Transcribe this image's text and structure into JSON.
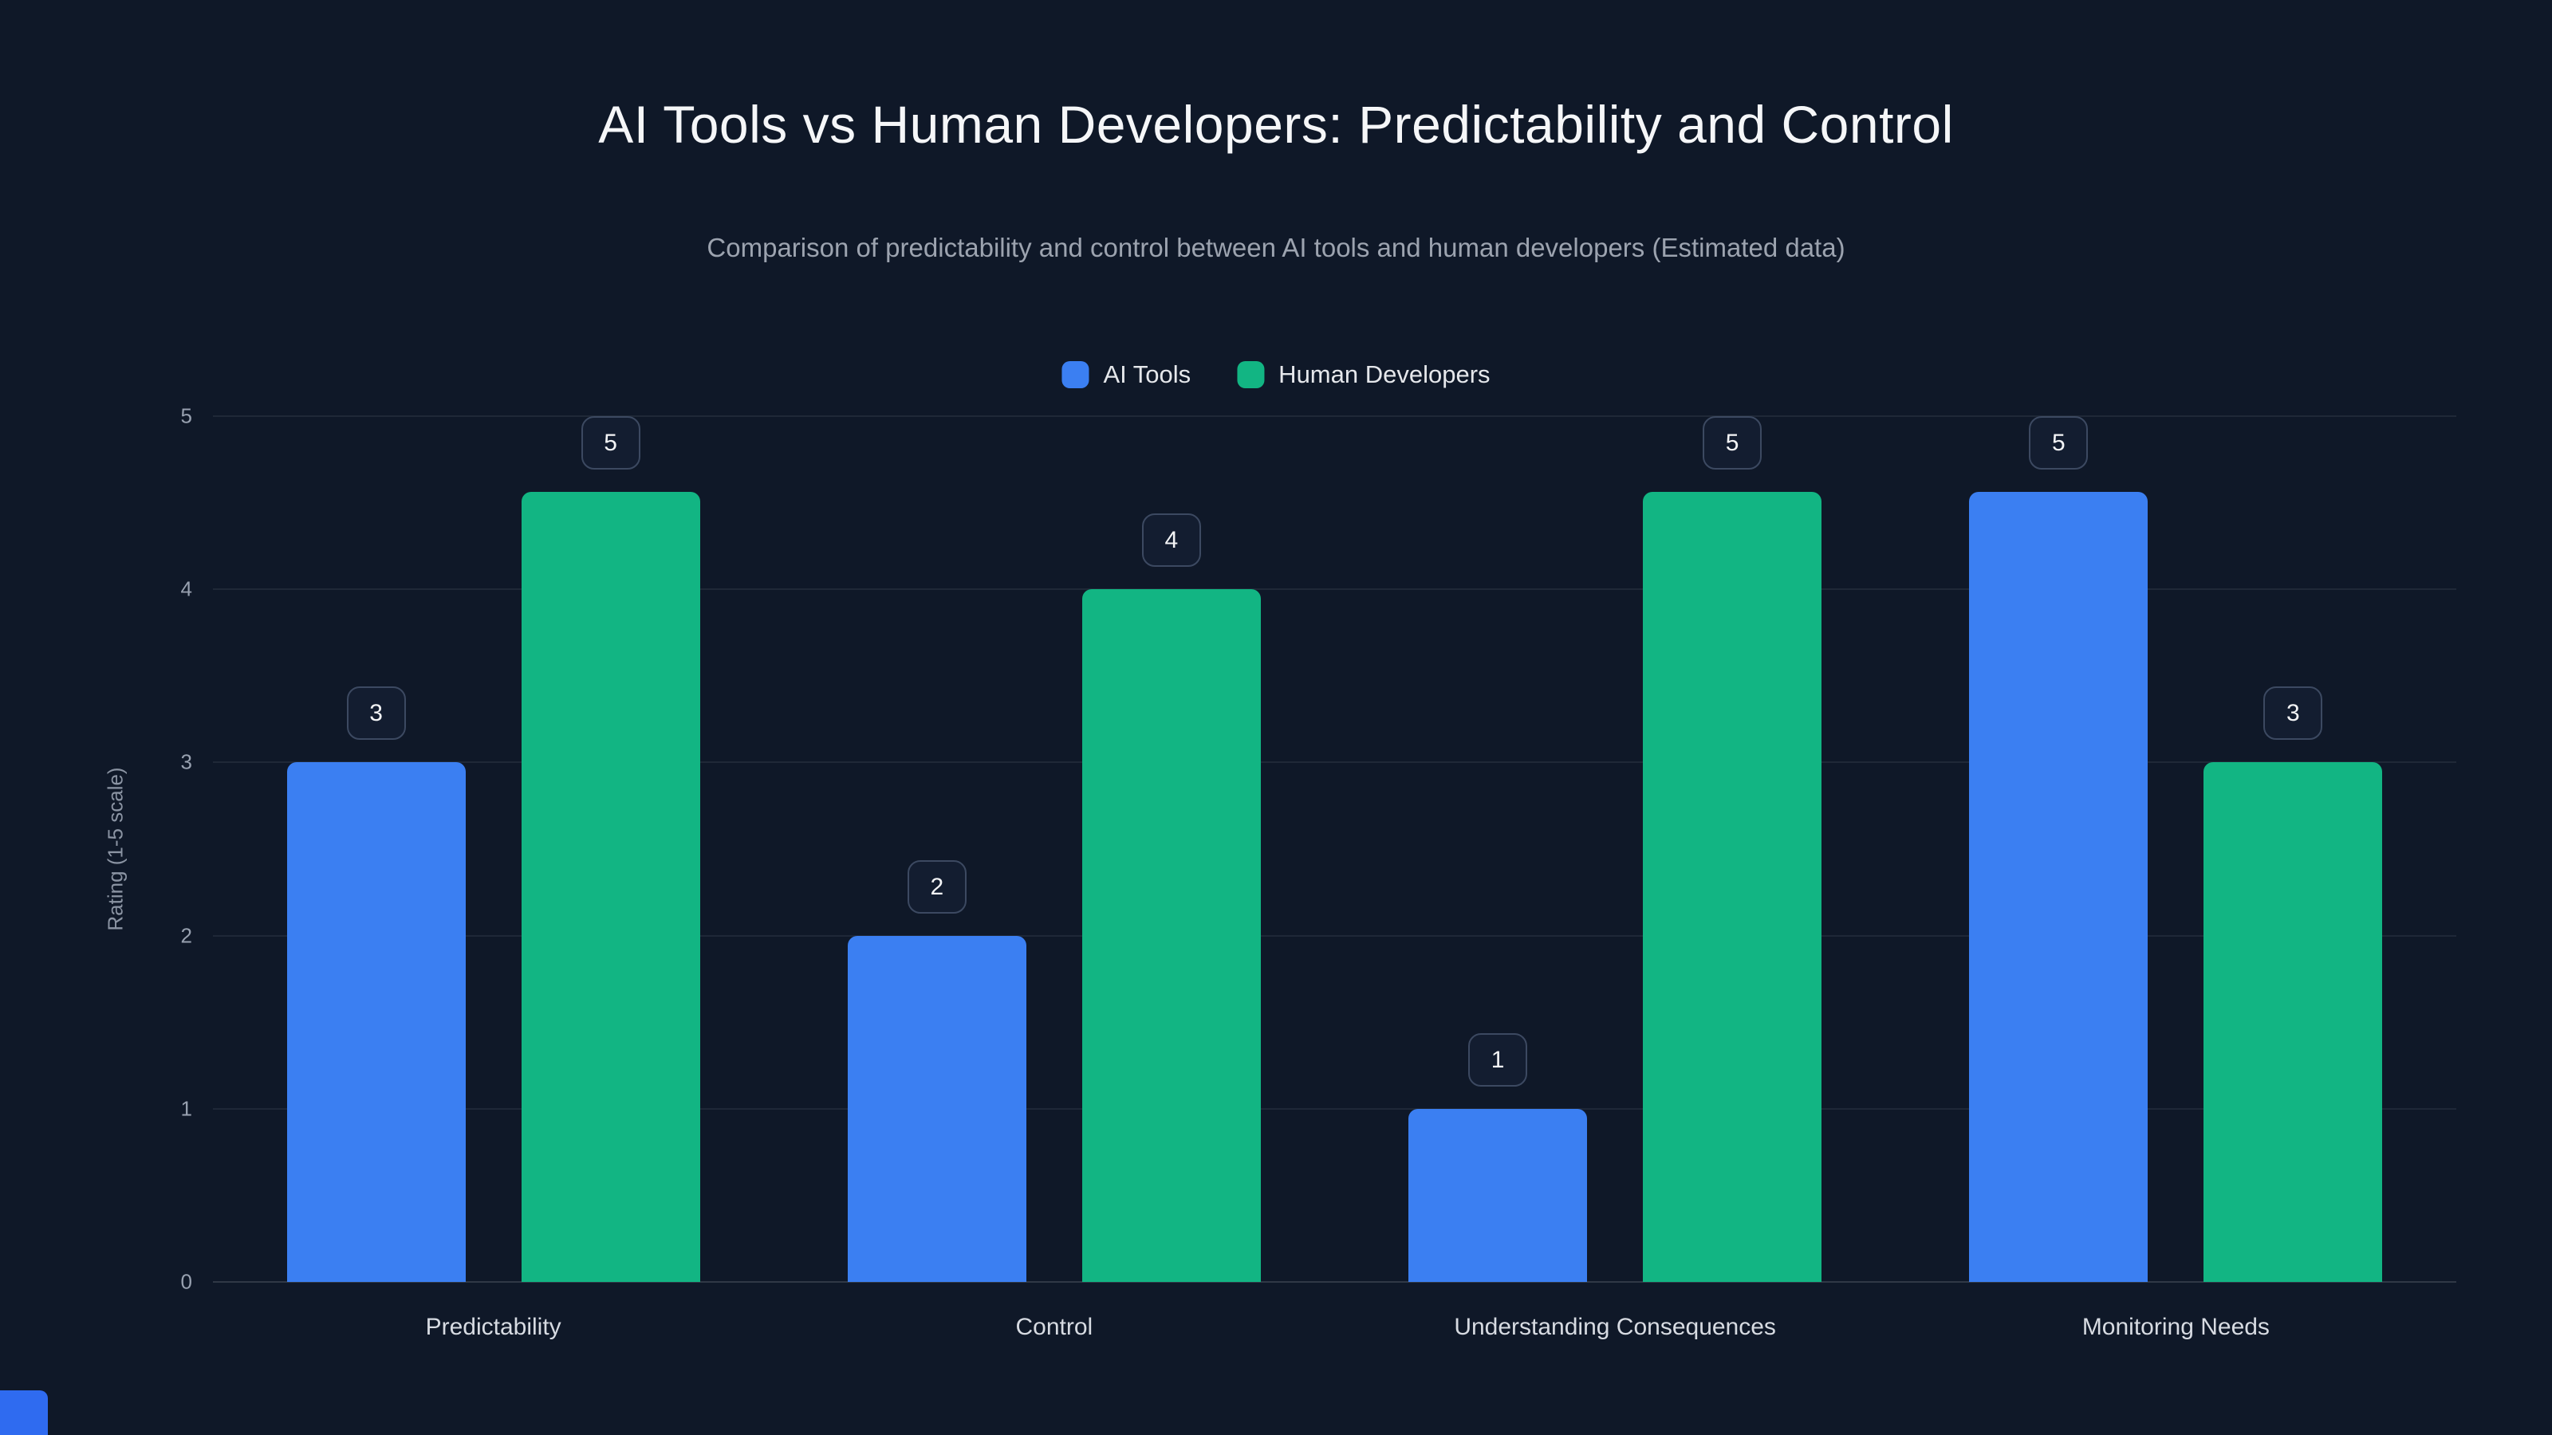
{
  "title": "AI Tools vs Human Developers: Predictability and Control",
  "subtitle": "Comparison of predictability and control between AI tools and human developers (Estimated data)",
  "colors": {
    "background": "#0f1828",
    "ai_tools": "#3b7ff2",
    "human_developers": "#12b583",
    "corner_accent": "#2f6bf0"
  },
  "chart_data": {
    "type": "bar",
    "categories": [
      "Predictability",
      "Control",
      "Understanding Consequences",
      "Monitoring Needs"
    ],
    "series": [
      {
        "name": "AI Tools",
        "color_key": "ai_tools",
        "values": [
          3,
          2,
          1,
          5
        ]
      },
      {
        "name": "Human Developers",
        "color_key": "human_developers",
        "values": [
          5,
          4,
          5,
          3
        ]
      }
    ],
    "title": "AI Tools vs Human Developers: Predictability and Control",
    "xlabel": "",
    "ylabel": "Rating (1-5 scale)",
    "ylim": [
      0,
      5
    ],
    "yticks": [
      0,
      1,
      2,
      3,
      4,
      5
    ],
    "grid": "horizontal",
    "legend_position": "top-center",
    "value_labels": true
  }
}
